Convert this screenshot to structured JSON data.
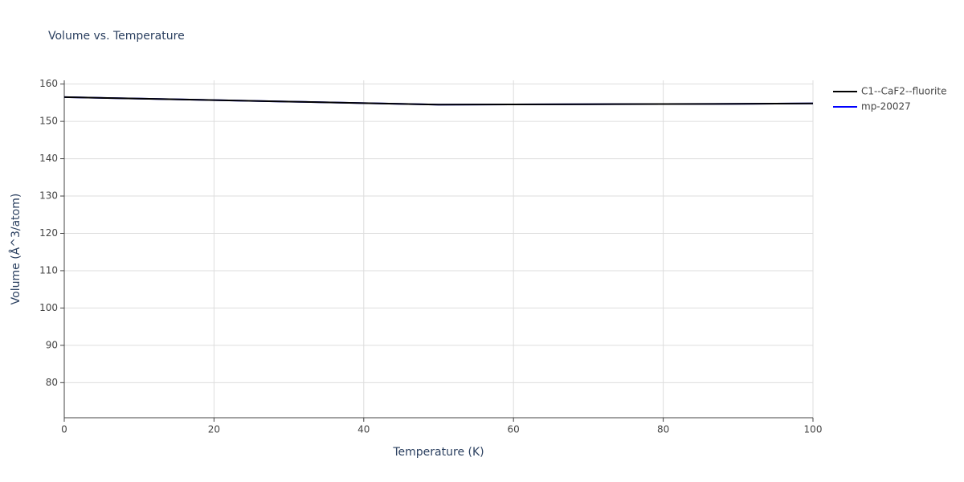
{
  "chart_data": {
    "type": "line",
    "title": "Volume vs. Temperature",
    "xlabel": "Temperature (K)",
    "ylabel": "Volume (Å^3/atom)",
    "x": [
      0,
      10,
      20,
      30,
      40,
      50,
      60,
      70,
      80,
      90,
      100
    ],
    "series": [
      {
        "name": "C1--CaF2--fluorite",
        "color": "#000000",
        "values": [
          156.5,
          156.1,
          155.7,
          155.3,
          154.9,
          154.5,
          154.55,
          154.6,
          154.65,
          154.7,
          154.8
        ]
      },
      {
        "name": "mp-20027",
        "color": "#0000ff",
        "values": [
          156.5,
          156.1,
          155.7,
          155.3,
          154.9,
          154.5,
          154.55,
          154.6,
          154.65,
          154.7,
          154.8
        ]
      }
    ],
    "xlim": [
      0,
      100
    ],
    "xticks": [
      0,
      20,
      40,
      60,
      80,
      100
    ],
    "ylim": [
      70.6,
      161
    ],
    "yticks": [
      80,
      90,
      100,
      110,
      120,
      130,
      140,
      150,
      160
    ],
    "grid": true,
    "legend": "outside-right"
  }
}
